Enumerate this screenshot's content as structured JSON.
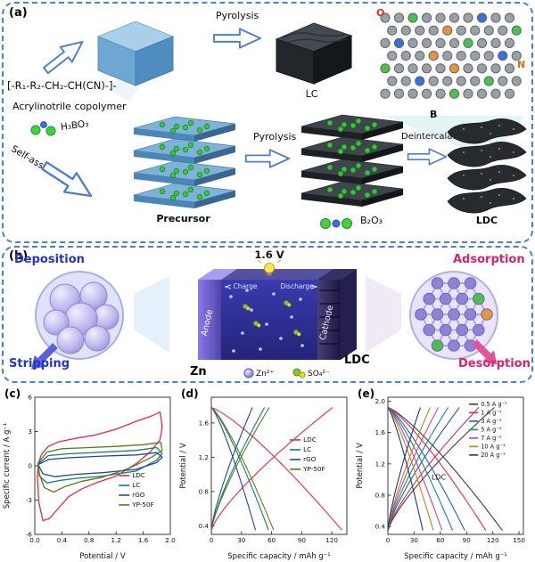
{
  "panel_a": {
    "label": "(a)",
    "pyrolysis_top": "Pyrolysis",
    "lc_label": "LC",
    "formula": "[-R₁-R₂-CH₂-CH(CN)-]-",
    "copolymer_label": "Acrylinotrile copolymer",
    "h3bo3_label": "H₃BO₃",
    "self_assembly_label": "Self-assembly",
    "precursor_label": "Precursor",
    "pyrolysis_bottom": "Pyrolysis",
    "deintercalation_label": "Deintercalation",
    "b2o3_label": "B₂O₃",
    "ldc_label": "LDC",
    "lattice_labels": {
      "oxygen": "O",
      "nitrogen": "N",
      "boron": "B"
    }
  },
  "panel_b": {
    "label": "(b)",
    "deposition_label": "Deposition",
    "stripping_label": "Stripping",
    "voltage_label": "1.6 V",
    "charge_label": "Charge",
    "discharge_label": "Discharge",
    "anode_label": "Anode",
    "cathode_label": "Cathode",
    "zn_label": "Zn",
    "ldc_label": "LDC",
    "zn_ion_label": "Zn²⁺",
    "so4_ion_label": "SO₄²⁻",
    "adsorption_label": "Adsorption",
    "desorption_label": "Desorption"
  },
  "colors": {
    "panel_border": "#4d7ec9",
    "deposition_text": "#2334c8",
    "adsorption_text": "#d6246e",
    "ldc_curve": "#e8274b",
    "lc_curve": "#0f7d72",
    "rgo_curve": "#23449e",
    "yp50f_curve": "#5c7a18"
  },
  "chart_data": [
    {
      "id": "c",
      "panel": "(c)",
      "type": "line",
      "subtype": "cv-loops",
      "title": "",
      "xlabel": "Potential / V",
      "ylabel": "Specific current / A g⁻¹",
      "xlim": [
        0,
        2.0
      ],
      "ylim": [
        -6,
        6
      ],
      "xticks": [
        0.0,
        0.4,
        0.8,
        1.2,
        1.6,
        2.0
      ],
      "yticks": [
        -6,
        -3,
        0,
        3,
        6
      ],
      "xdec": 1,
      "ydec": 0,
      "legend": {
        "fx": 0.62,
        "fy": 0.54,
        "dy": 11
      },
      "series": [
        {
          "name": "LDC",
          "color": "#e8274b",
          "loop": [
            [
              0.05,
              0.2
            ],
            [
              0.1,
              1.0
            ],
            [
              0.2,
              1.7
            ],
            [
              0.35,
              2.1
            ],
            [
              0.6,
              2.4
            ],
            [
              0.9,
              2.7
            ],
            [
              1.2,
              3.2
            ],
            [
              1.5,
              3.9
            ],
            [
              1.7,
              4.3
            ],
            [
              1.85,
              4.7
            ],
            [
              1.88,
              3.4
            ],
            [
              1.85,
              2.3
            ],
            [
              1.7,
              1.2
            ],
            [
              1.5,
              0.2
            ],
            [
              1.2,
              -0.9
            ],
            [
              0.9,
              -1.5
            ],
            [
              0.7,
              -2.0
            ],
            [
              0.5,
              -2.7
            ],
            [
              0.35,
              -3.7
            ],
            [
              0.22,
              -4.6
            ],
            [
              0.12,
              -4.8
            ],
            [
              0.06,
              -3.2
            ],
            [
              0.04,
              -1.0
            ]
          ]
        },
        {
          "name": "LC",
          "color": "#0f7d72",
          "loop": [
            [
              0.05,
              0.15
            ],
            [
              0.2,
              0.9
            ],
            [
              0.5,
              1.05
            ],
            [
              1.0,
              1.2
            ],
            [
              1.5,
              1.35
            ],
            [
              1.8,
              1.6
            ],
            [
              1.88,
              1.1
            ],
            [
              1.8,
              0.5
            ],
            [
              1.5,
              -0.45
            ],
            [
              1.0,
              -0.9
            ],
            [
              0.6,
              -1.1
            ],
            [
              0.35,
              -1.3
            ],
            [
              0.18,
              -1.5
            ],
            [
              0.07,
              -0.9
            ]
          ]
        },
        {
          "name": "rGO",
          "color": "#23449e",
          "loop": [
            [
              0.05,
              0.1
            ],
            [
              0.2,
              0.55
            ],
            [
              0.5,
              0.7
            ],
            [
              1.0,
              0.85
            ],
            [
              1.5,
              0.95
            ],
            [
              1.8,
              1.15
            ],
            [
              1.88,
              0.75
            ],
            [
              1.8,
              0.3
            ],
            [
              1.5,
              -0.3
            ],
            [
              1.0,
              -0.6
            ],
            [
              0.6,
              -0.75
            ],
            [
              0.3,
              -0.95
            ],
            [
              0.12,
              -0.7
            ]
          ]
        },
        {
          "name": "YP-50F",
          "color": "#5c7a18",
          "loop": [
            [
              0.05,
              0.25
            ],
            [
              0.18,
              1.2
            ],
            [
              0.4,
              1.5
            ],
            [
              0.8,
              1.6
            ],
            [
              1.2,
              1.7
            ],
            [
              1.6,
              1.85
            ],
            [
              1.86,
              2.05
            ],
            [
              1.88,
              1.35
            ],
            [
              1.72,
              0.75
            ],
            [
              1.4,
              -0.2
            ],
            [
              1.0,
              -1.0
            ],
            [
              0.7,
              -1.35
            ],
            [
              0.45,
              -1.8
            ],
            [
              0.28,
              -2.3
            ],
            [
              0.14,
              -1.9
            ],
            [
              0.06,
              -0.6
            ]
          ]
        }
      ]
    },
    {
      "id": "d",
      "panel": "(d)",
      "type": "line",
      "subtype": "gcd",
      "title": "",
      "xlabel": "Specific capacity / mAh g⁻¹",
      "ylabel": "Potential / V",
      "xlim": [
        0,
        135
      ],
      "ylim": [
        0.3,
        1.9
      ],
      "xticks": [
        0,
        30,
        60,
        90,
        120
      ],
      "yticks": [
        0.4,
        0.8,
        1.2,
        1.6
      ],
      "xdec": 0,
      "ydec": 1,
      "vrange": [
        0.35,
        1.78
      ],
      "legend": {
        "fx": 0.58,
        "fy": 0.28,
        "dy": 11
      },
      "series": [
        {
          "name": "LDC",
          "color": "#e8274b",
          "capacity": 130
        },
        {
          "name": "LC",
          "color": "#0f7d72",
          "capacity": 57
        },
        {
          "name": "rGO",
          "color": "#23449e",
          "capacity": 44
        },
        {
          "name": "YP-50F",
          "color": "#5c7a18",
          "capacity": 62
        }
      ]
    },
    {
      "id": "e",
      "panel": "(e)",
      "type": "line",
      "subtype": "gcd",
      "title": "",
      "xlabel": "Specific capacity / mAh g⁻¹",
      "ylabel": "Potential / V",
      "xlim": [
        0,
        155
      ],
      "ylim": [
        0.3,
        2.05
      ],
      "xticks": [
        0,
        30,
        60,
        90,
        120,
        150
      ],
      "yticks": [
        0.4,
        0.8,
        1.2,
        1.6,
        2.0
      ],
      "xdec": 0,
      "ydec": 1,
      "vrange": [
        0.35,
        1.92
      ],
      "legend": {
        "fx": 0.6,
        "fy": 0.02,
        "dy": 9.5,
        "small": true
      },
      "annotations": [
        {
          "text": "LDC",
          "x": 50,
          "y": 1.0
        }
      ],
      "series": [
        {
          "name": "0.5 A g⁻¹",
          "color": "#3c3c3c",
          "capacity": 131
        },
        {
          "name": "1 A g⁻¹",
          "color": "#e8274b",
          "capacity": 112
        },
        {
          "name": "3 A g⁻¹",
          "color": "#2457c5",
          "capacity": 88
        },
        {
          "name": "5 A g⁻¹",
          "color": "#128a7e",
          "capacity": 74
        },
        {
          "name": "7 A g⁻¹",
          "color": "#cf3f9a",
          "capacity": 62
        },
        {
          "name": "10 A g⁻¹",
          "color": "#b08c10",
          "capacity": 52
        },
        {
          "name": "20 A g⁻¹",
          "color": "#20356e",
          "capacity": 40
        }
      ]
    }
  ]
}
